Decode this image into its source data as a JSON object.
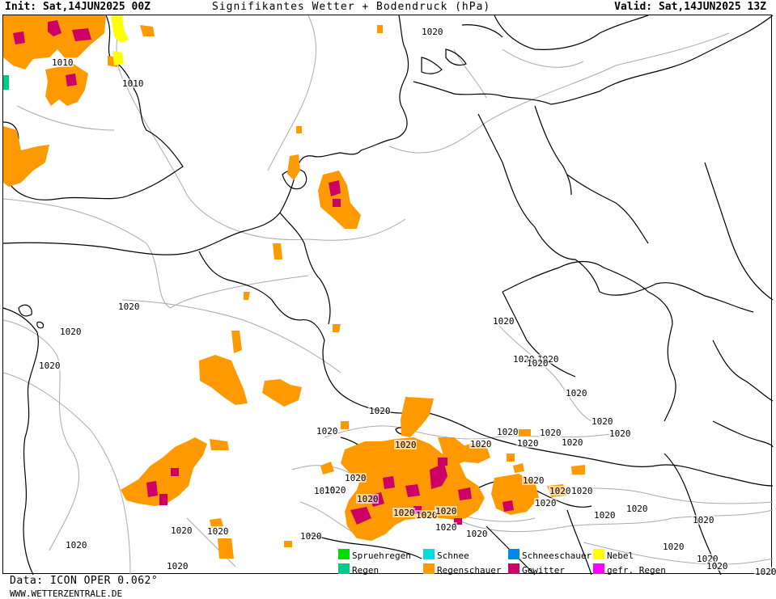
{
  "header": {
    "init": "Init: Sat,14JUN2025 00Z",
    "title": "Signifikantes Wetter + Bodendruck (hPa)",
    "valid": "Valid: Sat,14JUN2025 13Z"
  },
  "isobar_labels": [
    "1010",
    "1010",
    "1020",
    "1020",
    "1020",
    "1020",
    "1020",
    "1020",
    "1020",
    "1020",
    "1020",
    "1020",
    "1020",
    "1020",
    "1020",
    "1020",
    "1020",
    "1020",
    "1020",
    "1020",
    "1020",
    "1020",
    "1020",
    "1020",
    "1020",
    "1020",
    "1020",
    "1020",
    "1020",
    "1020",
    "1020",
    "1020",
    "1020",
    "1020",
    "1020",
    "1020",
    "1020",
    "1020",
    "1020",
    "1020",
    "1020",
    "1020",
    "1020",
    "1020",
    "1020",
    "1020"
  ],
  "legend": [
    {
      "label": "Spruehregen",
      "color": "#00dd00"
    },
    {
      "label": "Regen",
      "color": "#00cc88"
    },
    {
      "label": "Schnee",
      "color": "#00dddd"
    },
    {
      "label": "Regenschauer",
      "color": "#ff9900"
    },
    {
      "label": "Schneeschauer",
      "color": "#0088ee"
    },
    {
      "label": "Gewitter",
      "color": "#cc0066"
    },
    {
      "label": "Nebel",
      "color": "#ffff00"
    },
    {
      "label": "gefr. Regen",
      "color": "#ff00ff"
    }
  ],
  "footer": {
    "data": "Data: ICON OPER 0.062°",
    "site": "WWW.WETTERZENTRALE.DE"
  }
}
